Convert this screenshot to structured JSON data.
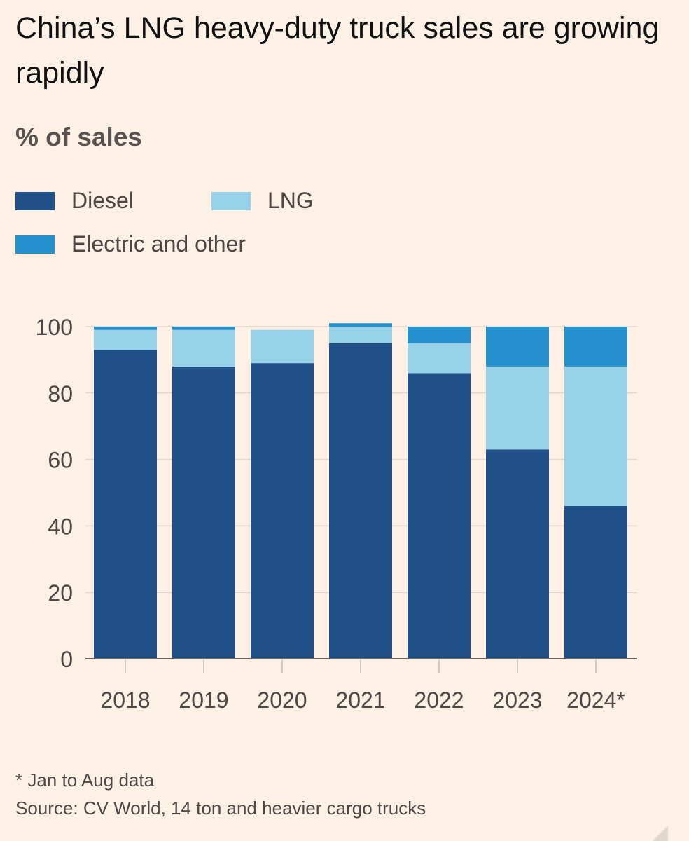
{
  "chart_data": {
    "type": "bar",
    "stacked": true,
    "title": "China’s LNG heavy-duty truck sales are growing rapidly",
    "subtitle": "% of sales",
    "categories": [
      "2018",
      "2019",
      "2020",
      "2021",
      "2022",
      "2023",
      "2024*"
    ],
    "series": [
      {
        "name": "Diesel",
        "color": "#205088",
        "values": [
          93,
          88,
          89,
          95,
          86,
          63,
          46
        ]
      },
      {
        "name": "LNG",
        "color": "#96d1e8",
        "values": [
          6,
          11,
          10,
          5,
          9,
          25,
          42
        ]
      },
      {
        "name": "Electric and other",
        "color": "#2591cd",
        "values": [
          1,
          1,
          0,
          1,
          5,
          12,
          12
        ]
      }
    ],
    "ylim": [
      0,
      100
    ],
    "yticks": [
      0,
      20,
      40,
      60,
      80,
      100
    ],
    "grid": true,
    "legend_position": "top",
    "footnote": "* Jan to Aug data",
    "source": "Source: CV World, 14 ton and heavier cargo trucks"
  }
}
